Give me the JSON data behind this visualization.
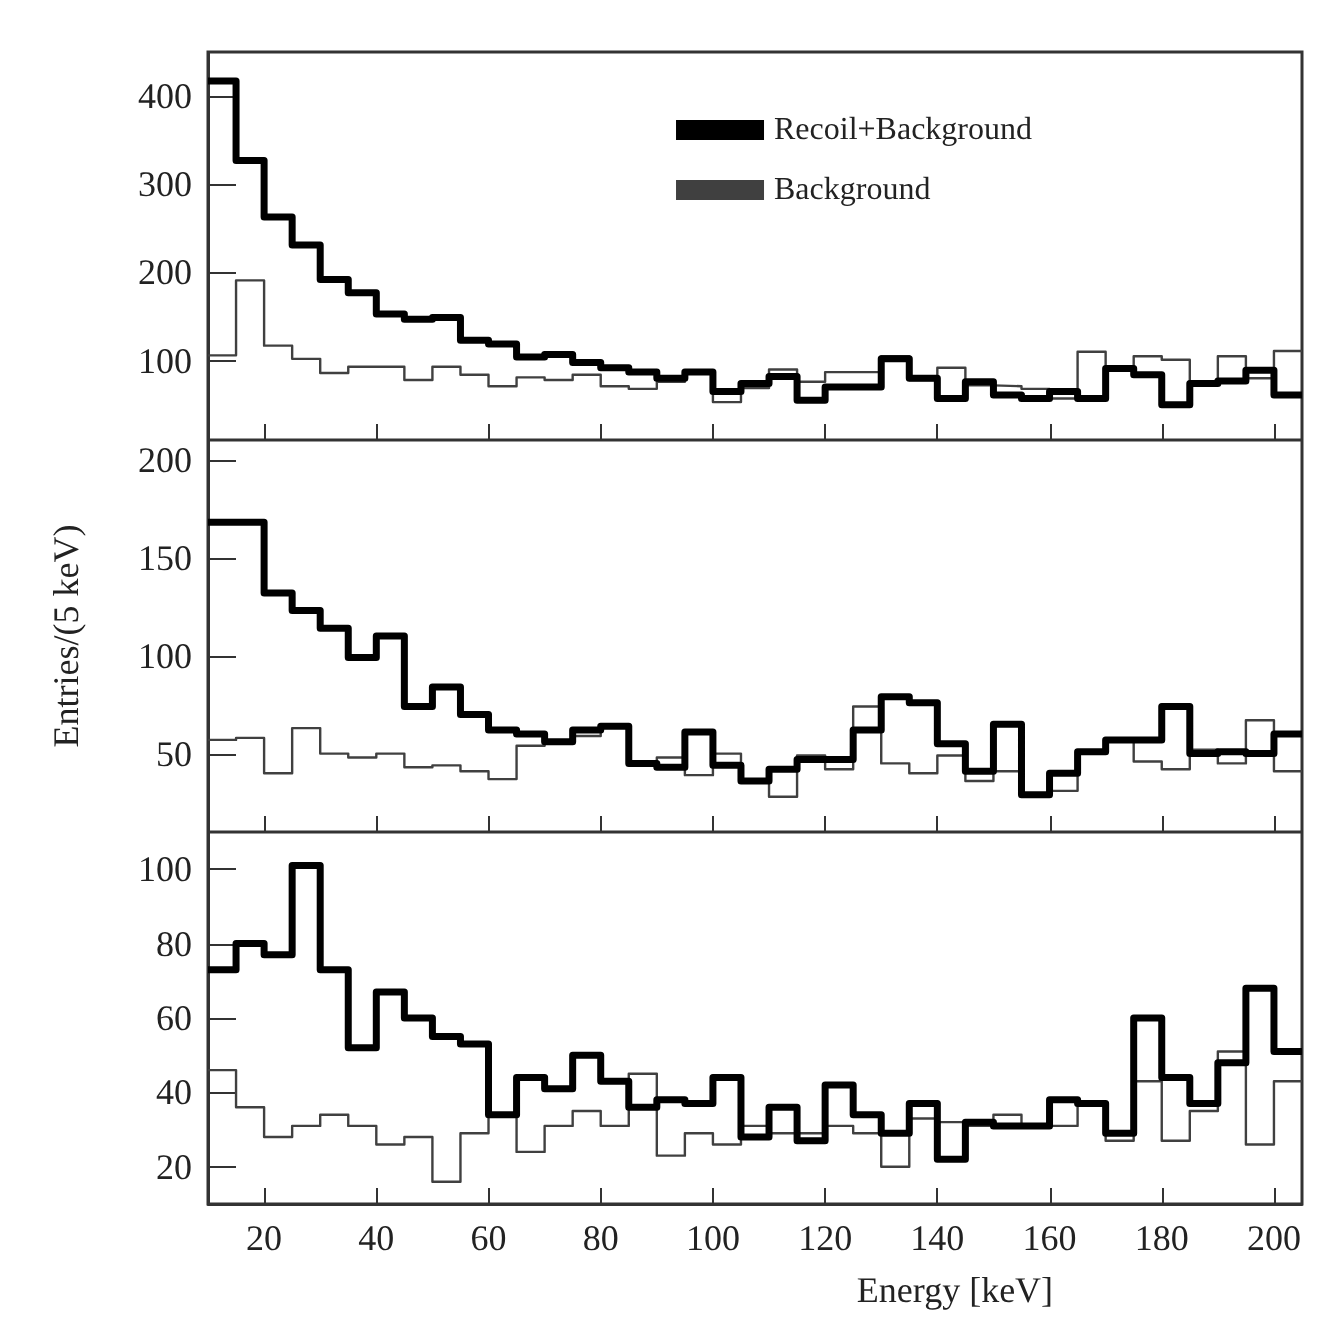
{
  "chart_data": [
    {
      "type": "histogram",
      "bins": [
        10,
        15,
        20,
        25,
        30,
        35,
        40,
        45,
        50,
        55,
        60,
        65,
        70,
        75,
        80,
        85,
        90,
        95,
        100,
        105,
        110,
        115,
        120,
        125,
        130,
        135,
        140,
        145,
        150,
        155,
        160,
        165,
        170,
        175,
        180,
        185,
        190,
        195,
        200,
        205
      ],
      "series": [
        {
          "name": "Recoil+Background",
          "color": "#000000",
          "values": [
            417,
            327,
            263,
            231,
            192,
            177,
            153,
            147,
            149,
            123,
            119,
            104,
            107,
            98,
            92,
            87,
            80,
            87,
            65,
            74,
            82,
            55,
            70,
            70,
            102,
            80,
            57,
            76,
            61,
            57,
            65,
            57,
            91,
            84,
            50,
            74,
            77,
            89,
            61
          ]
        },
        {
          "name": "Background",
          "color": "#404040",
          "values": [
            106,
            191,
            117,
            102,
            86,
            93,
            93,
            78,
            93,
            84,
            71,
            81,
            78,
            84,
            71,
            68,
            76,
            87,
            53,
            69,
            90,
            76,
            87,
            87,
            105,
            78,
            92,
            72,
            71,
            68,
            57,
            110,
            93,
            105,
            101,
            74,
            105,
            80,
            111
          ]
        }
      ],
      "xlim": [
        10,
        205
      ],
      "xticks": [
        20,
        40,
        60,
        80,
        100,
        120,
        140,
        160,
        180,
        200
      ],
      "ylim": [
        10,
        450
      ],
      "yticks": [
        100,
        200,
        300,
        400
      ],
      "tick_labels": "y",
      "legend": "top right",
      "line_style": "solid",
      "grid": false
    },
    {
      "type": "histogram",
      "ylabel": "Entries/(5 keV)",
      "bins": [
        10,
        15,
        20,
        25,
        30,
        35,
        40,
        45,
        50,
        55,
        60,
        65,
        70,
        75,
        80,
        85,
        90,
        95,
        100,
        105,
        110,
        115,
        120,
        125,
        130,
        135,
        140,
        145,
        150,
        155,
        160,
        165,
        170,
        175,
        180,
        185,
        190,
        195,
        200,
        205
      ],
      "series": [
        {
          "color": "#000000",
          "values": [
            168,
            168,
            132,
            123,
            114,
            99,
            110,
            74,
            84,
            70,
            62,
            60,
            56,
            62,
            64,
            45,
            43,
            61,
            44,
            36,
            42,
            47,
            47,
            62,
            79,
            76,
            55,
            41,
            65,
            29,
            40,
            51,
            57,
            57,
            74,
            50,
            51,
            50,
            60
          ]
        },
        {
          "color": "#404040",
          "values": [
            57,
            58,
            40,
            63,
            50,
            48,
            50,
            43,
            44,
            41,
            37,
            54,
            55,
            59,
            64,
            45,
            48,
            39,
            50,
            37,
            28,
            49,
            42,
            74,
            45,
            40,
            49,
            36,
            41,
            29,
            31,
            51,
            57,
            46,
            42,
            52,
            45,
            67,
            41
          ]
        }
      ],
      "xlim": [
        10,
        205
      ],
      "xticks": [
        20,
        40,
        60,
        80,
        100,
        120,
        140,
        160,
        180,
        200
      ],
      "ylim": [
        10,
        210
      ],
      "yticks": [
        50,
        100,
        150,
        200
      ],
      "tick_labels": "y",
      "line_style": "solid",
      "grid": false
    },
    {
      "type": "histogram",
      "xlabel": "Energy [keV]",
      "bins": [
        10,
        15,
        20,
        25,
        30,
        35,
        40,
        45,
        50,
        55,
        60,
        65,
        70,
        75,
        80,
        85,
        90,
        95,
        100,
        105,
        110,
        115,
        120,
        125,
        130,
        135,
        140,
        145,
        150,
        155,
        160,
        165,
        170,
        175,
        180,
        185,
        190,
        195,
        200,
        205
      ],
      "series": [
        {
          "color": "#000000",
          "values": [
            73,
            80,
            77,
            101,
            73,
            52,
            67,
            60,
            55,
            53,
            34,
            44,
            41,
            50,
            43,
            36,
            38,
            37,
            44,
            28,
            36,
            27,
            42,
            34,
            29,
            37,
            22,
            32,
            31,
            31,
            38,
            37,
            29,
            60,
            44,
            37,
            48,
            68,
            51
          ]
        },
        {
          "color": "#404040",
          "values": [
            46,
            36,
            28,
            31,
            34,
            31,
            26,
            28,
            16,
            29,
            34,
            24,
            31,
            35,
            31,
            45,
            23,
            29,
            26,
            31,
            29,
            29,
            31,
            29,
            20,
            33,
            32,
            31,
            34,
            31,
            31,
            37,
            27,
            43,
            27,
            35,
            51,
            26,
            43
          ]
        }
      ],
      "xlim": [
        10,
        205
      ],
      "xticks": [
        20,
        40,
        60,
        80,
        100,
        120,
        140,
        160,
        180,
        200
      ],
      "ylim": [
        10,
        110
      ],
      "yticks": [
        20,
        40,
        60,
        80,
        100
      ],
      "line_style": "solid",
      "grid": false
    }
  ]
}
